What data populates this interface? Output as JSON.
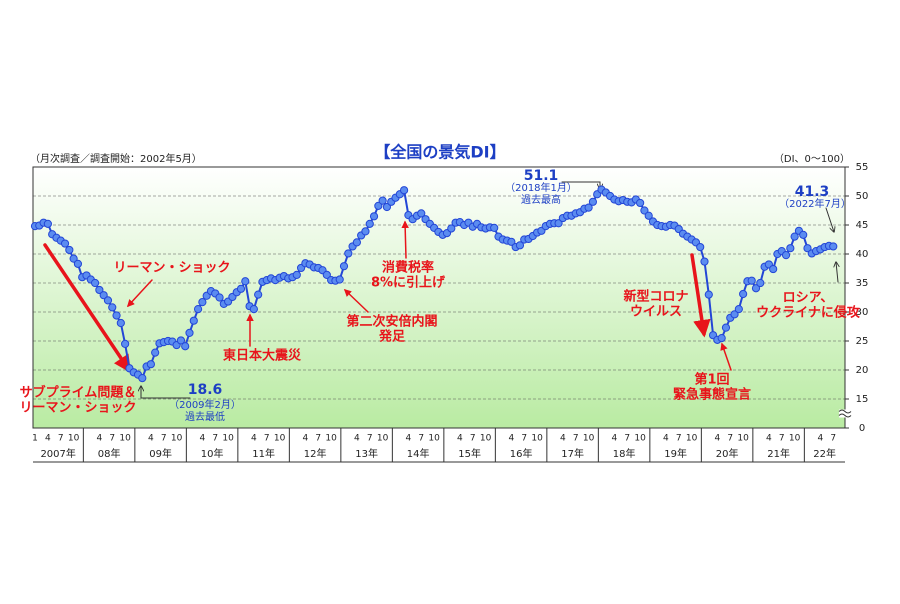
{
  "chart_data": {
    "type": "line",
    "title": "【全国の景気DI】",
    "subtitle": "（月次調査／調査開始：2002年5月）",
    "unit_note": "（DI、0〜100）",
    "x": [
      "2007-01",
      "2007-02",
      "2007-03",
      "2007-04",
      "2007-05",
      "2007-06",
      "2007-07",
      "2007-08",
      "2007-09",
      "2007-10",
      "2007-11",
      "2007-12",
      "2008-01",
      "2008-02",
      "2008-03",
      "2008-04",
      "2008-05",
      "2008-06",
      "2008-07",
      "2008-08",
      "2008-09",
      "2008-10",
      "2008-11",
      "2008-12",
      "2009-01",
      "2009-02",
      "2009-03",
      "2009-04",
      "2009-05",
      "2009-06",
      "2009-07",
      "2009-08",
      "2009-09",
      "2009-10",
      "2009-11",
      "2009-12",
      "2010-01",
      "2010-02",
      "2010-03",
      "2010-04",
      "2010-05",
      "2010-06",
      "2010-07",
      "2010-08",
      "2010-09",
      "2010-10",
      "2010-11",
      "2010-12",
      "2011-01",
      "2011-02",
      "2011-03",
      "2011-04",
      "2011-05",
      "2011-06",
      "2011-07",
      "2011-08",
      "2011-09",
      "2011-10",
      "2011-11",
      "2011-12",
      "2012-01",
      "2012-02",
      "2012-03",
      "2012-04",
      "2012-05",
      "2012-06",
      "2012-07",
      "2012-08",
      "2012-09",
      "2012-10",
      "2012-11",
      "2012-12",
      "2013-01",
      "2013-02",
      "2013-03",
      "2013-04",
      "2013-05",
      "2013-06",
      "2013-07",
      "2013-08",
      "2013-09",
      "2013-10",
      "2013-11",
      "2013-12",
      "2014-01",
      "2014-02",
      "2014-03",
      "2014-04",
      "2014-05",
      "2014-06",
      "2014-07",
      "2014-08",
      "2014-09",
      "2014-10",
      "2014-11",
      "2014-12",
      "2015-01",
      "2015-02",
      "2015-03",
      "2015-04",
      "2015-05",
      "2015-06",
      "2015-07",
      "2015-08",
      "2015-09",
      "2015-10",
      "2015-11",
      "2015-12",
      "2016-01",
      "2016-02",
      "2016-03",
      "2016-04",
      "2016-05",
      "2016-06",
      "2016-07",
      "2016-08",
      "2016-09",
      "2016-10",
      "2016-11",
      "2016-12",
      "2017-01",
      "2017-02",
      "2017-03",
      "2017-04",
      "2017-05",
      "2017-06",
      "2017-07",
      "2017-08",
      "2017-09",
      "2017-10",
      "2017-11",
      "2017-12",
      "2018-01",
      "2018-02",
      "2018-03",
      "2018-04",
      "2018-05",
      "2018-06",
      "2018-07",
      "2018-08",
      "2018-09",
      "2018-10",
      "2018-11",
      "2018-12",
      "2019-01",
      "2019-02",
      "2019-03",
      "2019-04",
      "2019-05",
      "2019-06",
      "2019-07",
      "2019-08",
      "2019-09",
      "2019-10",
      "2019-11",
      "2019-12",
      "2020-01",
      "2020-02",
      "2020-03",
      "2020-04",
      "2020-05",
      "2020-06",
      "2020-07",
      "2020-08",
      "2020-09",
      "2020-10",
      "2020-11",
      "2020-12",
      "2021-01",
      "2021-02",
      "2021-03",
      "2021-04",
      "2021-05",
      "2021-06",
      "2021-07",
      "2021-08",
      "2021-09",
      "2021-10",
      "2021-11",
      "2021-12",
      "2022-01",
      "2022-02",
      "2022-03",
      "2022-04",
      "2022-05",
      "2022-06",
      "2022-07"
    ],
    "values": [
      44.8,
      44.9,
      45.4,
      45.2,
      43.4,
      42.8,
      42.3,
      41.8,
      40.7,
      39.2,
      38.3,
      36.0,
      36.3,
      35.6,
      35.0,
      33.8,
      32.9,
      32.0,
      30.8,
      29.4,
      28.1,
      24.5,
      20.3,
      19.6,
      19.2,
      18.6,
      20.6,
      21.0,
      23.0,
      24.6,
      24.8,
      25.0,
      24.9,
      24.3,
      25.1,
      24.1,
      26.4,
      28.5,
      30.5,
      31.7,
      32.8,
      33.6,
      33.2,
      32.5,
      31.4,
      31.8,
      32.6,
      33.4,
      34.0,
      35.3,
      31.0,
      30.5,
      33.0,
      35.2,
      35.5,
      35.8,
      35.5,
      35.9,
      36.2,
      35.8,
      36.0,
      36.4,
      37.6,
      38.4,
      38.2,
      37.7,
      37.6,
      37.2,
      36.4,
      35.5,
      35.4,
      35.6,
      37.9,
      40.1,
      41.3,
      42.0,
      43.2,
      43.9,
      45.2,
      46.5,
      48.3,
      49.2,
      48.1,
      49.0,
      49.7,
      50.3,
      51.0,
      46.7,
      46.0,
      46.6,
      47.0,
      46.0,
      45.2,
      44.5,
      43.8,
      43.3,
      43.6,
      44.4,
      45.4,
      45.5,
      45.0,
      45.4,
      44.7,
      45.2,
      44.6,
      44.4,
      44.6,
      44.5,
      43.0,
      42.5,
      42.3,
      42.1,
      41.2,
      41.5,
      42.5,
      42.6,
      43.1,
      43.7,
      44.0,
      44.8,
      45.2,
      45.3,
      45.3,
      46.2,
      46.6,
      46.6,
      47.0,
      47.2,
      47.8,
      48.0,
      49.0,
      50.3,
      51.1,
      50.6,
      50.0,
      49.4,
      49.1,
      49.3,
      49.0,
      48.9,
      49.4,
      48.8,
      47.5,
      46.6,
      45.6,
      45.0,
      44.8,
      44.7,
      45.0,
      44.9,
      44.3,
      43.5,
      43.0,
      42.5,
      42.0,
      41.2,
      38.7,
      33.0,
      26.0,
      25.2,
      25.5,
      27.3,
      29.0,
      29.6,
      30.5,
      33.1,
      35.3,
      35.4,
      34.1,
      35.0,
      37.8,
      38.2,
      37.4,
      40.0,
      40.5,
      39.8,
      41.0,
      43.0,
      44.0,
      43.3,
      41.0,
      40.1,
      40.5,
      40.8,
      41.2,
      41.4,
      41.3
    ],
    "color": "#2346d6",
    "marker_color": "#5b8cf0",
    "ylim": [
      10,
      55
    ],
    "yticks": [
      {
        "value": 10,
        "label": "0"
      },
      15,
      20,
      25,
      30,
      35,
      40,
      45,
      50,
      55
    ],
    "axis_break": true,
    "grid": true,
    "xticks": [
      {
        "value": "2007-01",
        "label": "1"
      },
      {
        "value": "2007-04",
        "label": "4"
      },
      {
        "value": "2007-07",
        "label": "7"
      },
      {
        "value": "2007-10",
        "label": "10"
      },
      {
        "value": "2008-04",
        "label": "4"
      },
      {
        "value": "2008-07",
        "label": "7"
      },
      {
        "value": "2008-10",
        "label": "10"
      },
      {
        "value": "2009-04",
        "label": "4"
      },
      {
        "value": "2009-07",
        "label": "7"
      },
      {
        "value": "2009-10",
        "label": "10"
      },
      {
        "value": "2010-04",
        "label": "4"
      },
      {
        "value": "2010-07",
        "label": "7"
      },
      {
        "value": "2010-10",
        "label": "10"
      },
      {
        "value": "2011-04",
        "label": "4"
      },
      {
        "value": "2011-07",
        "label": "7"
      },
      {
        "value": "2011-10",
        "label": "10"
      },
      {
        "value": "2012-04",
        "label": "4"
      },
      {
        "value": "2012-07",
        "label": "7"
      },
      {
        "value": "2012-10",
        "label": "10"
      },
      {
        "value": "2013-04",
        "label": "4"
      },
      {
        "value": "2013-07",
        "label": "7"
      },
      {
        "value": "2013-10",
        "label": "10"
      },
      {
        "value": "2014-04",
        "label": "4"
      },
      {
        "value": "2014-07",
        "label": "7"
      },
      {
        "value": "2014-10",
        "label": "10"
      },
      {
        "value": "2015-04",
        "label": "4"
      },
      {
        "value": "2015-07",
        "label": "7"
      },
      {
        "value": "2015-10",
        "label": "10"
      },
      {
        "value": "2016-04",
        "label": "4"
      },
      {
        "value": "2016-07",
        "label": "7"
      },
      {
        "value": "2016-10",
        "label": "10"
      },
      {
        "value": "2017-04",
        "label": "4"
      },
      {
        "value": "2017-07",
        "label": "7"
      },
      {
        "value": "2017-10",
        "label": "10"
      },
      {
        "value": "2018-04",
        "label": "4"
      },
      {
        "value": "2018-07",
        "label": "7"
      },
      {
        "value": "2018-10",
        "label": "10"
      },
      {
        "value": "2019-04",
        "label": "4"
      },
      {
        "value": "2019-07",
        "label": "7"
      },
      {
        "value": "2019-10",
        "label": "10"
      },
      {
        "value": "2020-04",
        "label": "4"
      },
      {
        "value": "2020-07",
        "label": "7"
      },
      {
        "value": "2020-10",
        "label": "10"
      },
      {
        "value": "2021-04",
        "label": "4"
      },
      {
        "value": "2021-07",
        "label": "7"
      },
      {
        "value": "2021-10",
        "label": "10"
      },
      {
        "value": "2022-04",
        "label": "4"
      },
      {
        "value": "2022-07",
        "label": "7"
      }
    ],
    "year_labels": [
      {
        "value": "2007",
        "label": "2007年"
      },
      {
        "value": "2008",
        "label": "08年"
      },
      {
        "value": "2009",
        "label": "09年"
      },
      {
        "value": "2010",
        "label": "10年"
      },
      {
        "value": "2011",
        "label": "11年"
      },
      {
        "value": "2012",
        "label": "12年"
      },
      {
        "value": "2013",
        "label": "13年"
      },
      {
        "value": "2014",
        "label": "14年"
      },
      {
        "value": "2015",
        "label": "15年"
      },
      {
        "value": "2016",
        "label": "16年"
      },
      {
        "value": "2017",
        "label": "17年"
      },
      {
        "value": "2018",
        "label": "18年"
      },
      {
        "value": "2019",
        "label": "19年"
      },
      {
        "value": "2020",
        "label": "20年"
      },
      {
        "value": "2021",
        "label": "21年"
      },
      {
        "value": "2022",
        "label": "22年"
      }
    ],
    "annotations": [
      {
        "lines": [
          "リーマン・ショック"
        ],
        "color": "#e8141b"
      },
      {
        "lines": [
          "東日本大震災"
        ],
        "color": "#e8141b"
      },
      {
        "lines": [
          "消費税率",
          "8%に引上げ"
        ],
        "color": "#e8141b"
      },
      {
        "lines": [
          "第二次安倍内閣",
          "発足"
        ],
        "color": "#e8141b"
      },
      {
        "lines": [
          "新型コロナ",
          "ウイルス"
        ],
        "color": "#e8141b"
      },
      {
        "lines": [
          "第1回",
          "緊急事態宣言"
        ],
        "color": "#e8141b"
      },
      {
        "lines": [
          "ロシア、",
          "ウクライナに侵攻"
        ],
        "color": "#e8141b"
      },
      {
        "lines": [
          "サブプライム問題＆",
          "リーマン・ショック"
        ],
        "color": "#e8141b"
      },
      {
        "lines": [
          "（2009年2月）",
          "過去最低"
        ],
        "color": "#1d3fc4"
      },
      {
        "lines": [
          "（2018年1月）",
          "過去最高"
        ],
        "color": "#1d3fc4"
      },
      {
        "lines": [
          "（2022年7月）"
        ],
        "color": "#1d3fc4"
      }
    ]
  }
}
